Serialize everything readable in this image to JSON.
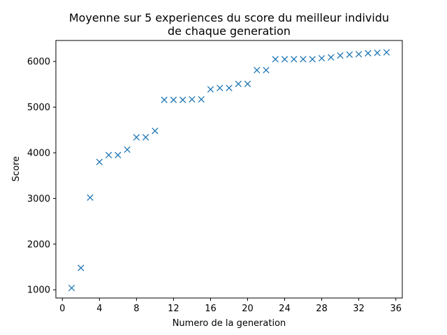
{
  "chart_data": {
    "type": "scatter",
    "title_line1": "Moyenne sur 5 experiences du score du meilleur individu",
    "title_line2": "de chaque generation",
    "xlabel": "Numero de la generation",
    "ylabel": "Score",
    "xlim": [
      -0.7,
      36.7
    ],
    "ylim": [
      820,
      6460
    ],
    "xticks": [
      0,
      4,
      8,
      12,
      16,
      20,
      24,
      28,
      32,
      36
    ],
    "yticks": [
      1000,
      2000,
      3000,
      4000,
      5000,
      6000
    ],
    "marker": "x",
    "color": "#1f77b4",
    "grid": false,
    "series": [
      {
        "x": [
          1,
          2,
          3,
          4,
          5,
          6,
          7,
          8,
          9,
          10,
          11,
          12,
          13,
          14,
          15,
          16,
          17,
          18,
          19,
          20,
          21,
          22,
          23,
          24,
          25,
          26,
          27,
          28,
          29,
          30,
          31,
          32,
          33,
          34,
          35
        ],
        "y": [
          1040,
          1480,
          3020,
          3800,
          3950,
          3950,
          4070,
          4340,
          4340,
          4480,
          5160,
          5160,
          5160,
          5170,
          5170,
          5390,
          5420,
          5420,
          5510,
          5510,
          5810,
          5810,
          6050,
          6050,
          6050,
          6050,
          6050,
          6070,
          6090,
          6130,
          6150,
          6160,
          6180,
          6190,
          6200
        ]
      }
    ]
  }
}
